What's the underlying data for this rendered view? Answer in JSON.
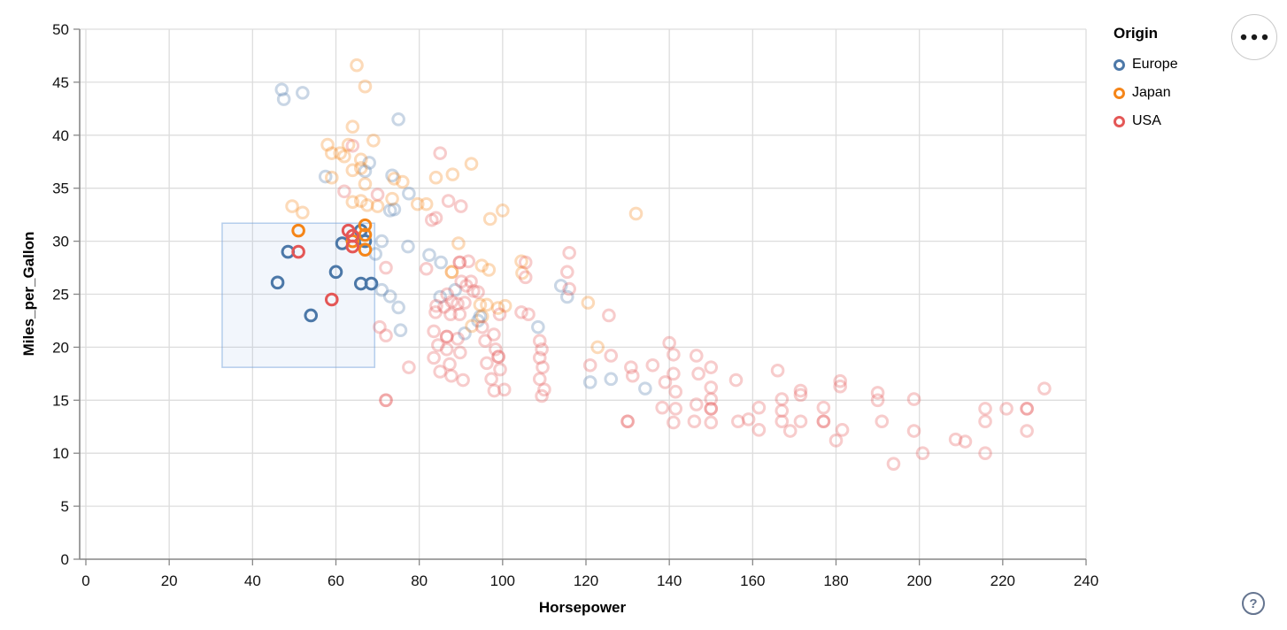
{
  "window": {
    "background": "#ffffff"
  },
  "toolbar": {
    "menu_button_icon": "ellipsis-icon"
  },
  "help": {
    "symbol": "?"
  },
  "chart_data": {
    "type": "scatter",
    "title": "",
    "xlabel": "Horsepower",
    "ylabel": "Miles_per_Gallon",
    "xlim": [
      0,
      240
    ],
    "ylim": [
      0,
      50
    ],
    "x_ticks": [
      0,
      20,
      40,
      60,
      80,
      100,
      120,
      140,
      160,
      180,
      200,
      220,
      240
    ],
    "y_ticks": [
      0,
      5,
      10,
      15,
      20,
      25,
      30,
      35,
      40,
      45,
      50
    ],
    "grid": true,
    "grid_color": "#dddddd",
    "axis_color": "#888888",
    "tick_label_color": "#111111",
    "legend": {
      "title": "Origin",
      "position": "top-right",
      "entries": [
        {
          "label": "Europe",
          "color": "#4c78a8"
        },
        {
          "label": "Japan",
          "color": "#f58518"
        },
        {
          "label": "USA",
          "color": "#e45756"
        }
      ]
    },
    "selection_brush": {
      "hp_range": [
        32.7,
        69.3
      ],
      "mpg_range": [
        18.1,
        31.7
      ],
      "fill": "#6a9fe0",
      "fill_opacity": 0.09,
      "stroke": "#7da7dd",
      "stroke_opacity": 0.55
    },
    "point_style": {
      "radius": 6.3,
      "stroke_width": 3,
      "unselected_opacity": 0.3
    },
    "series": [
      {
        "name": "Europe",
        "color": "#4c78a8",
        "selected": [
          [
            46,
            26.1
          ],
          [
            48.5,
            29
          ],
          [
            54,
            23
          ],
          [
            60,
            27.1
          ],
          [
            61.5,
            29.8
          ],
          [
            66,
            31
          ],
          [
            67,
            30
          ],
          [
            66,
            26
          ],
          [
            68.5,
            26
          ]
        ],
        "unselected": [
          [
            47,
            44.3
          ],
          [
            52,
            44
          ],
          [
            47.5,
            43.4
          ],
          [
            75,
            41.5
          ],
          [
            68,
            37.4
          ],
          [
            67,
            36.6
          ],
          [
            57.5,
            36.1
          ],
          [
            73.5,
            36.2
          ],
          [
            77.5,
            34.5
          ],
          [
            74,
            33
          ],
          [
            73,
            32.9
          ],
          [
            85.2,
            28
          ],
          [
            82.4,
            28.7
          ],
          [
            88.6,
            25.4
          ],
          [
            85,
            24.75
          ],
          [
            94.6,
            22.9
          ],
          [
            94.1,
            22.5
          ],
          [
            114,
            25.8
          ],
          [
            115.5,
            24.75
          ],
          [
            108.5,
            21.9
          ],
          [
            75,
            23.75
          ],
          [
            75.5,
            21.6
          ],
          [
            73,
            24.8
          ],
          [
            121,
            16.7
          ],
          [
            126,
            17
          ],
          [
            134.2,
            16.1
          ],
          [
            69.5,
            28.8
          ],
          [
            71,
            30
          ],
          [
            71,
            25.4
          ],
          [
            77.3,
            29.5
          ],
          [
            90.9,
            21.3
          ]
        ]
      },
      {
        "name": "Japan",
        "color": "#f58518",
        "selected": [
          [
            51,
            31
          ],
          [
            67,
            31.5
          ],
          [
            67,
            30.6
          ],
          [
            64,
            30
          ],
          [
            67,
            29.2
          ]
        ],
        "unselected": [
          [
            65,
            46.6
          ],
          [
            67,
            44.6
          ],
          [
            64,
            40.8
          ],
          [
            69,
            39.5
          ],
          [
            58,
            39.1
          ],
          [
            63,
            39.1
          ],
          [
            59,
            38.3
          ],
          [
            61,
            38.3
          ],
          [
            62,
            38
          ],
          [
            66,
            37.7
          ],
          [
            66,
            36.9
          ],
          [
            64,
            36.7
          ],
          [
            59,
            36
          ],
          [
            74,
            35.9
          ],
          [
            67,
            35.4
          ],
          [
            76,
            35.6
          ],
          [
            49.5,
            33.3
          ],
          [
            52,
            32.7
          ],
          [
            64,
            33.7
          ],
          [
            66,
            33.8
          ],
          [
            67.5,
            33.4
          ],
          [
            70,
            33.3
          ],
          [
            79.6,
            33.5
          ],
          [
            81.7,
            33.5
          ],
          [
            73.5,
            34
          ],
          [
            92.5,
            37.3
          ],
          [
            88,
            36.3
          ],
          [
            84,
            36
          ],
          [
            100,
            32.9
          ],
          [
            97,
            32.1
          ],
          [
            132,
            32.6
          ],
          [
            89.4,
            29.8
          ],
          [
            87.8,
            27.1
          ],
          [
            87.8,
            27.1
          ],
          [
            95,
            27.7
          ],
          [
            96.7,
            27.3
          ],
          [
            104.5,
            28.1
          ],
          [
            104.7,
            27
          ],
          [
            94.6,
            24
          ],
          [
            96.2,
            24
          ],
          [
            98.9,
            23.7
          ],
          [
            100.6,
            23.9
          ],
          [
            95.1,
            22.9
          ],
          [
            92.6,
            22
          ],
          [
            120.5,
            24.2
          ],
          [
            122.8,
            20
          ]
        ]
      },
      {
        "name": "USA",
        "color": "#e45756",
        "selected": [
          [
            51,
            29
          ],
          [
            59,
            24.5
          ],
          [
            63,
            31
          ],
          [
            64,
            30.5
          ],
          [
            64,
            29.5
          ]
        ],
        "unselected": [
          [
            64,
            39
          ],
          [
            62,
            34.7
          ],
          [
            70,
            34.4
          ],
          [
            83,
            32
          ],
          [
            85,
            38.3
          ],
          [
            87,
            33.8
          ],
          [
            90,
            33.3
          ],
          [
            84,
            32.2
          ],
          [
            81.7,
            27.4
          ],
          [
            89.7,
            28
          ],
          [
            89.7,
            28
          ],
          [
            91.8,
            28.1
          ],
          [
            92.4,
            26.2
          ],
          [
            90.1,
            26.2
          ],
          [
            91.3,
            25.8
          ],
          [
            93,
            25.3
          ],
          [
            94.1,
            25.2
          ],
          [
            86.7,
            25
          ],
          [
            84.1,
            23.9
          ],
          [
            86,
            23.8
          ],
          [
            87.8,
            24.3
          ],
          [
            89.2,
            24.1
          ],
          [
            90.9,
            24.2
          ],
          [
            99.3,
            23.1
          ],
          [
            104.5,
            23.3
          ],
          [
            106.2,
            23.1
          ],
          [
            89.7,
            23.1
          ],
          [
            87.5,
            23.1
          ],
          [
            83.9,
            23.3
          ],
          [
            116,
            28.9
          ],
          [
            105.5,
            28
          ],
          [
            105.5,
            26.6
          ],
          [
            115.5,
            27.1
          ],
          [
            116,
            25.5
          ],
          [
            125.5,
            23
          ],
          [
            72,
            27.5
          ],
          [
            70.5,
            21.9
          ],
          [
            72,
            21.1
          ],
          [
            83.5,
            21.5
          ],
          [
            86.6,
            21
          ],
          [
            86.6,
            21
          ],
          [
            89.2,
            20.8
          ],
          [
            84.5,
            20.2
          ],
          [
            86.6,
            19.8
          ],
          [
            89.8,
            19.5
          ],
          [
            83.5,
            19
          ],
          [
            87.3,
            18.4
          ],
          [
            85,
            17.7
          ],
          [
            87.7,
            17.3
          ],
          [
            90.5,
            16.9
          ],
          [
            98,
            15.9
          ],
          [
            95.1,
            21.9
          ],
          [
            97.9,
            21.2
          ],
          [
            95.8,
            20.6
          ],
          [
            98.3,
            19.8
          ],
          [
            99,
            19.1
          ],
          [
            99,
            19.1
          ],
          [
            96.2,
            18.5
          ],
          [
            99.4,
            17.9
          ],
          [
            97.3,
            17
          ],
          [
            100.4,
            16
          ],
          [
            108.9,
            20.6
          ],
          [
            109.4,
            19.8
          ],
          [
            108.9,
            19
          ],
          [
            109.6,
            18.1
          ],
          [
            108.9,
            17
          ],
          [
            110,
            16
          ],
          [
            109.4,
            15.4
          ],
          [
            126,
            19.2
          ],
          [
            121,
            18.3
          ],
          [
            130.8,
            18.1
          ],
          [
            131.2,
            17.3
          ],
          [
            136,
            18.3
          ],
          [
            140,
            20.4
          ],
          [
            141,
            19.3
          ],
          [
            141,
            17.5
          ],
          [
            139,
            16.7
          ],
          [
            141.5,
            15.8
          ],
          [
            138.3,
            14.3
          ],
          [
            141.5,
            14.2
          ],
          [
            141,
            12.9
          ],
          [
            130,
            13
          ],
          [
            130,
            13
          ],
          [
            146.5,
            19.2
          ],
          [
            147,
            17.5
          ],
          [
            146.5,
            14.6
          ],
          [
            146,
            13
          ],
          [
            150,
            18.1
          ],
          [
            150,
            16.2
          ],
          [
            150,
            15.1
          ],
          [
            150,
            14.2
          ],
          [
            150,
            14.2
          ],
          [
            150,
            12.9
          ],
          [
            156,
            16.9
          ],
          [
            156.5,
            13
          ],
          [
            159,
            13.2
          ],
          [
            161.5,
            14.3
          ],
          [
            161.5,
            12.2
          ],
          [
            166,
            17.8
          ],
          [
            167,
            15.1
          ],
          [
            167,
            14
          ],
          [
            167,
            13
          ],
          [
            169,
            12.1
          ],
          [
            171.5,
            15.9
          ],
          [
            171.5,
            15.5
          ],
          [
            171.5,
            13
          ],
          [
            177,
            14.3
          ],
          [
            177,
            13
          ],
          [
            177,
            13
          ],
          [
            181,
            16.8
          ],
          [
            181,
            16.3
          ],
          [
            181.5,
            12.2
          ],
          [
            180,
            11.2
          ],
          [
            190,
            15.7
          ],
          [
            190,
            15
          ],
          [
            198.7,
            15.1
          ],
          [
            191,
            13
          ],
          [
            198.7,
            12.1
          ],
          [
            200.8,
            10
          ],
          [
            193.8,
            9
          ],
          [
            208.7,
            11.3
          ],
          [
            211,
            11.1
          ],
          [
            215.8,
            14.2
          ],
          [
            215.8,
            13
          ],
          [
            215.8,
            10
          ],
          [
            220.9,
            14.2
          ],
          [
            225.8,
            14.2
          ],
          [
            225.8,
            14.2
          ],
          [
            225.8,
            12.1
          ],
          [
            230,
            16.1
          ],
          [
            77.5,
            18.1
          ],
          [
            72,
            15
          ],
          [
            72,
            15
          ]
        ]
      }
    ]
  }
}
